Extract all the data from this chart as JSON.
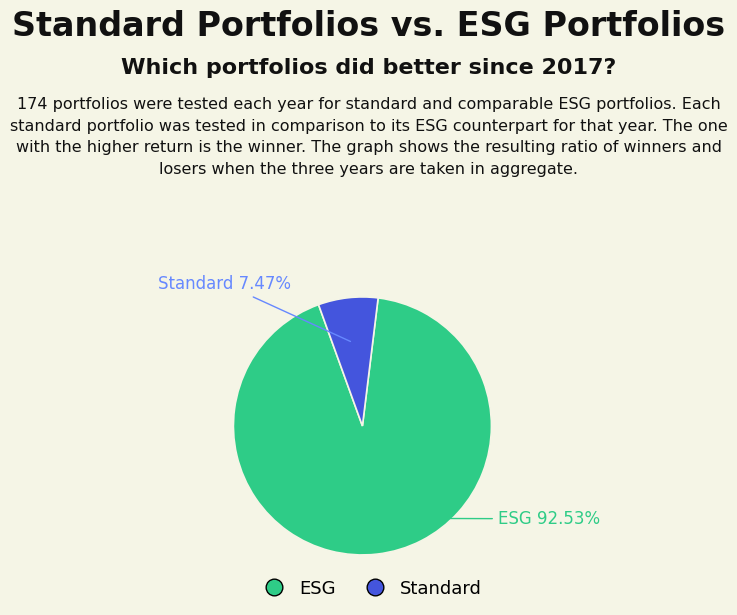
{
  "title": "Standard Portfolios vs. ESG Portfolios",
  "subtitle": "Which portfolios did better since 2017?",
  "description": "174 portfolios were tested each year for standard and comparable ESG portfolios. Each\nstandard portfolio was tested in comparison to its ESG counterpart for that year. The one\nwith the higher return is the winner. The graph shows the resulting ratio of winners and\nlosers when the three years are taken in aggregate.",
  "slices": [
    92.53,
    7.47
  ],
  "labels": [
    "ESG",
    "Standard"
  ],
  "colors": [
    "#2ecc87",
    "#4455dd"
  ],
  "label_colors": [
    "#2ecc87",
    "#6688ff"
  ],
  "background_color": "#f5f5e6",
  "title_fontsize": 24,
  "subtitle_fontsize": 16,
  "description_fontsize": 11.5,
  "legend_fontsize": 13,
  "startangle": 83
}
